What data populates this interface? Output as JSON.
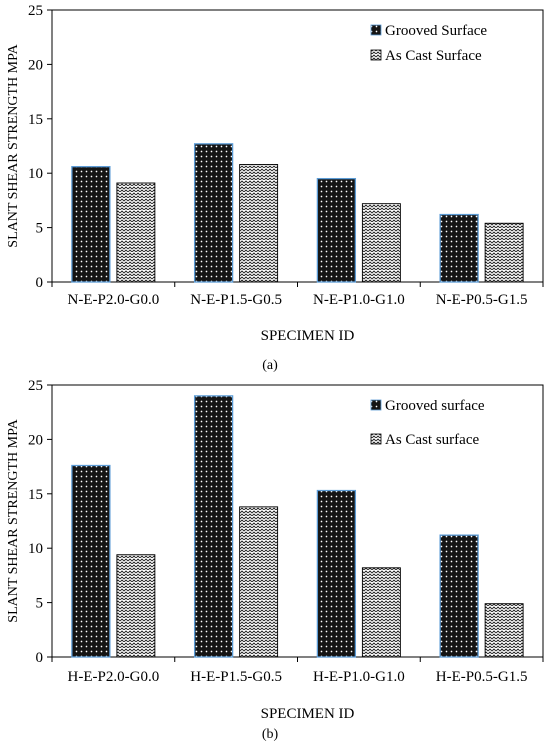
{
  "chart_data": [
    {
      "type": "bar",
      "panel_label": "(a)",
      "categories": [
        "N-E-P2.0-G0.0",
        "N-E-P1.5-G0.5",
        "N-E-P1.0-G1.0",
        "N-E-P0.5-G1.5"
      ],
      "series": [
        {
          "name": "Grooved Surface",
          "values": [
            10.6,
            12.7,
            9.5,
            6.2
          ],
          "pattern": "dots"
        },
        {
          "name": "As Cast Surface",
          "values": [
            9.1,
            10.8,
            7.2,
            5.4
          ],
          "pattern": "waves"
        }
      ],
      "xlabel": "SPECIMEN ID",
      "ylabel": "SLANT SHEAR STRENGTH MPA",
      "ylim": [
        0,
        25
      ],
      "yticks": [
        0,
        5,
        10,
        15,
        20,
        25
      ],
      "grid": false,
      "legend_position": "top-right"
    },
    {
      "type": "bar",
      "panel_label": "(b)",
      "categories": [
        "H-E-P2.0-G0.0",
        "H-E-P1.5-G0.5",
        "H-E-P1.0-G1.0",
        "H-E-P0.5-G1.5"
      ],
      "series": [
        {
          "name": "Grooved surface",
          "values": [
            17.6,
            24.0,
            15.3,
            11.2
          ],
          "pattern": "dots"
        },
        {
          "name": "As Cast surface",
          "values": [
            9.4,
            13.8,
            8.2,
            4.9
          ],
          "pattern": "waves"
        }
      ],
      "xlabel": "SPECIMEN ID",
      "ylabel": "SLANT SHEAR STRENGTH MPA",
      "ylim": [
        0,
        25
      ],
      "yticks": [
        0,
        5,
        10,
        15,
        20,
        25
      ],
      "grid": false,
      "legend_position": "top-right"
    }
  ],
  "colors": {
    "bar_fill_dark": "#1a1a1a",
    "bar_edge_blue": "#5b9bd5",
    "axis": "#000000"
  }
}
